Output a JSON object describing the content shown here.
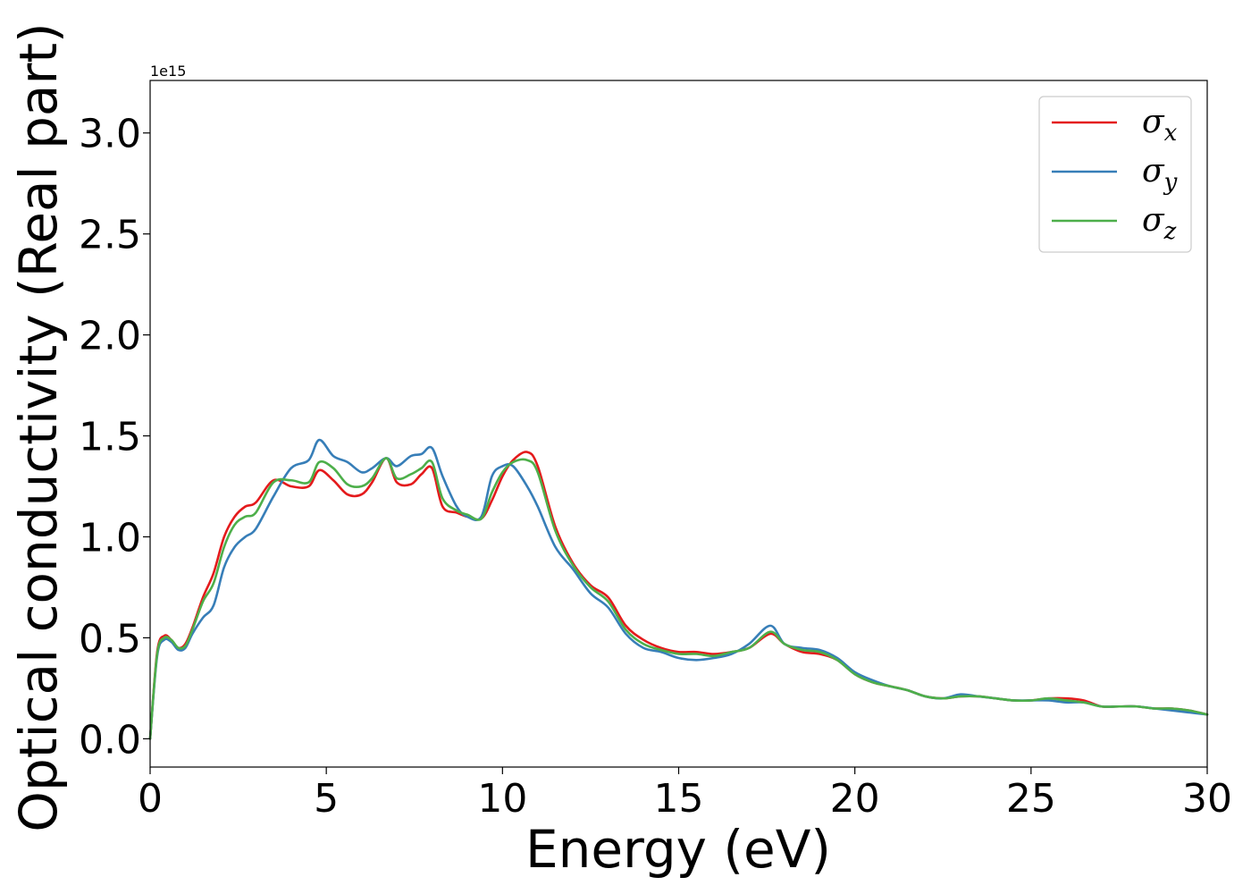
{
  "chart_data": {
    "type": "line",
    "xlabel": "Energy (eV)",
    "ylabel": "Optical conductivity (Real part)",
    "y_offset_label": "1e15",
    "xlim": [
      0,
      30
    ],
    "ylim": [
      -0.14,
      3.26
    ],
    "x_ticks": [
      0,
      5,
      10,
      15,
      20,
      25,
      30
    ],
    "x_tick_labels": [
      "0",
      "5",
      "10",
      "15",
      "20",
      "25",
      "30"
    ],
    "y_ticks": [
      0.0,
      0.5,
      1.0,
      1.5,
      2.0,
      2.5,
      3.0
    ],
    "y_tick_labels": [
      "0.0",
      "0.5",
      "1.0",
      "1.5",
      "2.0",
      "2.5",
      "3.0"
    ],
    "grid": false,
    "legend": {
      "position": "top-right"
    },
    "x": [
      0,
      0.2,
      0.4,
      0.6,
      0.8,
      1.0,
      1.2,
      1.5,
      1.8,
      2.1,
      2.4,
      2.7,
      3.0,
      3.5,
      4.0,
      4.5,
      4.8,
      5.2,
      5.6,
      6.0,
      6.3,
      6.7,
      7.0,
      7.4,
      7.7,
      8.0,
      8.3,
      8.7,
      9.0,
      9.4,
      9.7,
      10.0,
      10.3,
      10.7,
      11.0,
      11.5,
      12.0,
      12.5,
      13.0,
      13.5,
      14.0,
      14.5,
      15.0,
      15.5,
      16.0,
      16.5,
      17.0,
      17.6,
      18.0,
      18.5,
      19.0,
      19.5,
      20.0,
      20.5,
      21.0,
      21.5,
      22.0,
      22.5,
      23.0,
      23.5,
      24.0,
      24.5,
      25.0,
      25.5,
      26.0,
      26.5,
      27.0,
      27.5,
      28.0,
      28.5,
      29.0,
      29.5,
      30.0
    ],
    "series": [
      {
        "name": "σx",
        "label_base": "σ",
        "label_sub": "x",
        "color": "#e41a1c",
        "values": [
          0.0,
          0.43,
          0.51,
          0.49,
          0.45,
          0.47,
          0.55,
          0.7,
          0.82,
          1.0,
          1.1,
          1.15,
          1.17,
          1.28,
          1.25,
          1.25,
          1.33,
          1.28,
          1.21,
          1.21,
          1.27,
          1.39,
          1.27,
          1.26,
          1.31,
          1.34,
          1.15,
          1.12,
          1.1,
          1.09,
          1.18,
          1.3,
          1.38,
          1.42,
          1.35,
          1.05,
          0.87,
          0.76,
          0.7,
          0.56,
          0.49,
          0.45,
          0.43,
          0.43,
          0.42,
          0.43,
          0.45,
          0.52,
          0.47,
          0.43,
          0.42,
          0.39,
          0.32,
          0.28,
          0.26,
          0.24,
          0.21,
          0.2,
          0.21,
          0.21,
          0.2,
          0.19,
          0.19,
          0.2,
          0.2,
          0.19,
          0.16,
          0.16,
          0.16,
          0.15,
          0.15,
          0.14,
          0.12
        ]
      },
      {
        "name": "σy",
        "label_base": "σ",
        "label_sub": "y",
        "color": "#377eb8",
        "values": [
          0.0,
          0.41,
          0.49,
          0.48,
          0.44,
          0.45,
          0.52,
          0.6,
          0.66,
          0.85,
          0.95,
          1.0,
          1.04,
          1.2,
          1.34,
          1.38,
          1.48,
          1.4,
          1.37,
          1.32,
          1.34,
          1.39,
          1.35,
          1.4,
          1.41,
          1.44,
          1.3,
          1.15,
          1.1,
          1.1,
          1.3,
          1.35,
          1.35,
          1.25,
          1.15,
          0.95,
          0.84,
          0.72,
          0.65,
          0.52,
          0.45,
          0.43,
          0.4,
          0.39,
          0.4,
          0.42,
          0.47,
          0.56,
          0.47,
          0.45,
          0.44,
          0.4,
          0.33,
          0.29,
          0.26,
          0.24,
          0.21,
          0.2,
          0.22,
          0.21,
          0.2,
          0.19,
          0.19,
          0.19,
          0.18,
          0.18,
          0.16,
          0.16,
          0.16,
          0.15,
          0.14,
          0.13,
          0.12
        ]
      },
      {
        "name": "σz",
        "label_base": "σ",
        "label_sub": "z",
        "color": "#4daf4a",
        "values": [
          0.0,
          0.42,
          0.5,
          0.49,
          0.45,
          0.46,
          0.54,
          0.68,
          0.77,
          0.95,
          1.06,
          1.1,
          1.12,
          1.27,
          1.28,
          1.27,
          1.37,
          1.34,
          1.26,
          1.25,
          1.29,
          1.39,
          1.29,
          1.31,
          1.34,
          1.37,
          1.19,
          1.13,
          1.11,
          1.09,
          1.22,
          1.32,
          1.37,
          1.38,
          1.32,
          1.03,
          0.86,
          0.75,
          0.68,
          0.54,
          0.47,
          0.44,
          0.42,
          0.42,
          0.41,
          0.43,
          0.45,
          0.53,
          0.47,
          0.44,
          0.43,
          0.39,
          0.32,
          0.28,
          0.26,
          0.24,
          0.21,
          0.2,
          0.21,
          0.21,
          0.2,
          0.19,
          0.19,
          0.2,
          0.19,
          0.18,
          0.16,
          0.16,
          0.16,
          0.15,
          0.15,
          0.14,
          0.12
        ]
      }
    ]
  }
}
